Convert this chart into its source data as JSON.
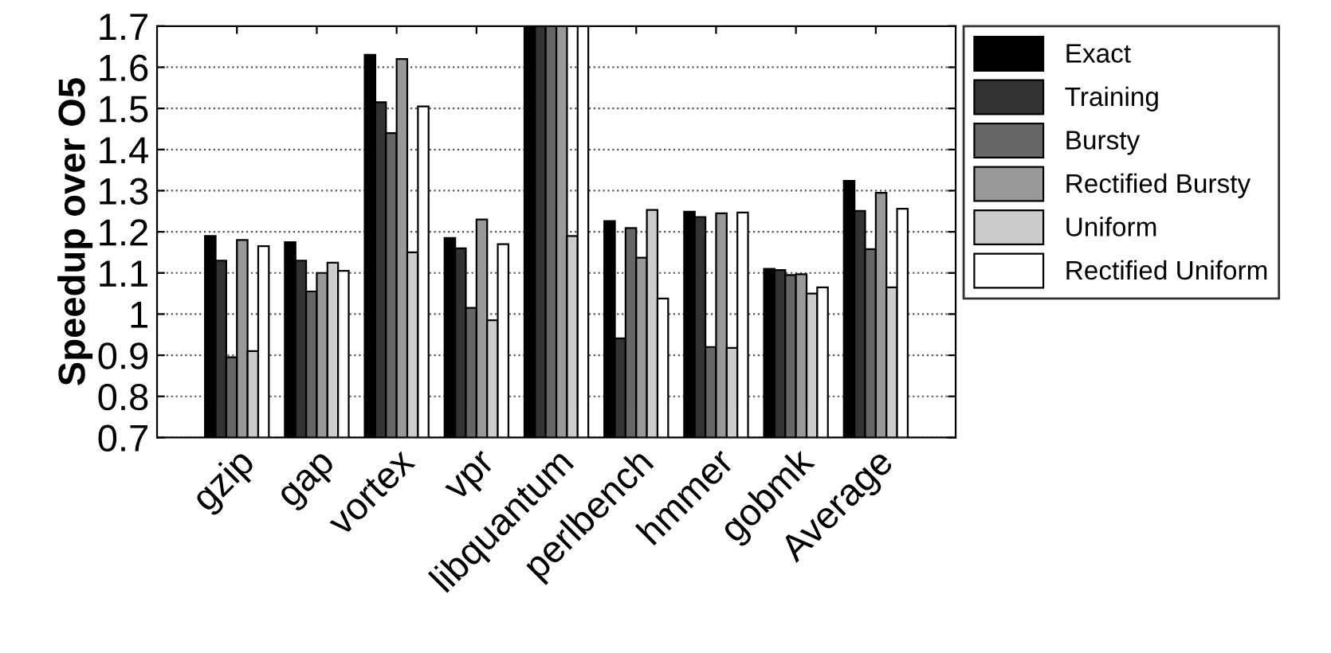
{
  "chart_data": {
    "type": "bar",
    "ylabel": "Speedup over O5",
    "categories": [
      "gzip",
      "gap",
      "vortex",
      "vpr",
      "libquantum",
      "perlbench",
      "hmmer",
      "gobmk",
      "Average"
    ],
    "series": [
      {
        "name": "Exact",
        "color": "#000000",
        "values": [
          1.19,
          1.175,
          1.63,
          1.185,
          1.7,
          1.226,
          1.249,
          1.11,
          1.324
        ]
      },
      {
        "name": "Training",
        "color": "#333333",
        "values": [
          1.13,
          1.13,
          1.515,
          1.16,
          1.7,
          0.941,
          1.236,
          1.107,
          1.251
        ]
      },
      {
        "name": "Bursty",
        "color": "#666666",
        "values": [
          0.895,
          1.055,
          1.44,
          1.015,
          1.7,
          1.209,
          0.92,
          1.095,
          1.158
        ]
      },
      {
        "name": "Rectified Bursty",
        "color": "#999999",
        "values": [
          1.18,
          1.1,
          1.62,
          1.23,
          1.7,
          1.137,
          1.245,
          1.097,
          1.295
        ]
      },
      {
        "name": "Uniform",
        "color": "#cccccc",
        "values": [
          0.91,
          1.125,
          1.15,
          0.985,
          1.19,
          1.253,
          0.918,
          1.05,
          1.065
        ]
      },
      {
        "name": "Rectified Uniform",
        "color": "#ffffff",
        "values": [
          1.165,
          1.105,
          1.505,
          1.17,
          1.7,
          1.038,
          1.247,
          1.065,
          1.256
        ]
      }
    ],
    "ylim": [
      0.7,
      1.7
    ],
    "yticks": [
      0.7,
      0.8,
      0.9,
      1,
      1.1,
      1.2,
      1.3,
      1.4,
      1.5,
      1.6,
      1.7
    ],
    "grid": "y",
    "legend": "top right"
  }
}
